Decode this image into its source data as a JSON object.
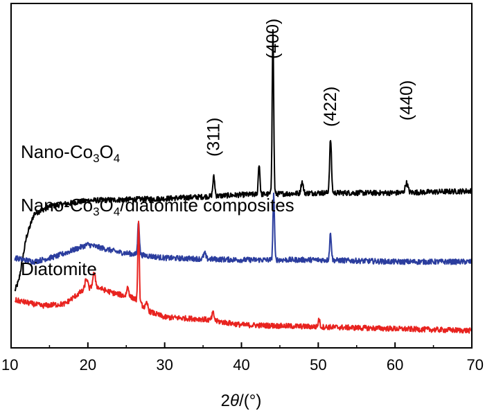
{
  "chart_data": {
    "type": "line",
    "xlabel_prefix": "2",
    "xlabel_theta": "θ",
    "xlabel_suffix": "/(°)",
    "ylabel": "",
    "xlim": [
      10,
      70
    ],
    "xticks": [
      10,
      20,
      30,
      40,
      50,
      60,
      70
    ],
    "grid": false,
    "series": [
      {
        "name": "Nano-Co3O4",
        "label_parts": [
          "Nano-Co",
          "3",
          "O",
          "4"
        ],
        "color": "#000000",
        "baseline": [
          [
            10.5,
            3
          ],
          [
            11,
            3.5
          ],
          [
            12,
            5.8
          ],
          [
            13,
            7.0
          ],
          [
            15,
            7.4
          ],
          [
            20,
            7.7
          ],
          [
            30,
            7.8
          ],
          [
            40,
            8.0
          ],
          [
            50,
            8.1
          ],
          [
            60,
            8.1
          ],
          [
            70,
            8.2
          ]
        ],
        "peaks": [
          {
            "x": 36.4,
            "h": 1.0,
            "w": 0.18
          },
          {
            "x": 42.3,
            "h": 1.6,
            "w": 0.15
          },
          {
            "x": 44.1,
            "h": 8.5,
            "w": 0.14
          },
          {
            "x": 47.9,
            "h": 0.6,
            "w": 0.2
          },
          {
            "x": 51.6,
            "h": 2.8,
            "w": 0.17
          },
          {
            "x": 61.5,
            "h": 0.5,
            "w": 0.25
          }
        ]
      },
      {
        "name": "Nano-Co3O4/diatomite composites",
        "label_parts": [
          "Nano-Co",
          "3",
          "O",
          "4",
          "/diatomite composites"
        ],
        "color": "#2b3d9e",
        "baseline": [
          [
            10.5,
            4.7
          ],
          [
            13,
            4.5
          ],
          [
            16,
            4.8
          ],
          [
            20,
            5.4
          ],
          [
            24,
            5.0
          ],
          [
            30,
            4.7
          ],
          [
            40,
            4.6
          ],
          [
            50,
            4.6
          ],
          [
            60,
            4.5
          ],
          [
            70,
            4.5
          ]
        ],
        "peaks": [
          {
            "x": 26.6,
            "h": 1.8,
            "w": 0.15
          },
          {
            "x": 35.2,
            "h": 0.3,
            "w": 0.2
          },
          {
            "x": 44.2,
            "h": 3.4,
            "w": 0.14
          },
          {
            "x": 51.6,
            "h": 1.4,
            "w": 0.16
          }
        ]
      },
      {
        "name": "Diatomite",
        "label_parts": [
          "Diatomite"
        ],
        "color": "#e8231f",
        "baseline": [
          [
            10.5,
            2.5
          ],
          [
            14,
            2.2
          ],
          [
            17,
            2.3
          ],
          [
            19,
            2.9
          ],
          [
            21,
            3.2
          ],
          [
            23,
            2.9
          ],
          [
            26,
            2.6
          ],
          [
            28,
            1.9
          ],
          [
            30,
            1.6
          ],
          [
            35,
            1.5
          ],
          [
            40,
            1.2
          ],
          [
            50,
            1.1
          ],
          [
            60,
            1.0
          ],
          [
            70,
            0.9
          ]
        ],
        "peaks": [
          {
            "x": 19.8,
            "h": 0.6,
            "w": 0.25
          },
          {
            "x": 20.8,
            "h": 0.7,
            "w": 0.25
          },
          {
            "x": 25.2,
            "h": 0.5,
            "w": 0.2
          },
          {
            "x": 26.6,
            "h": 4.3,
            "w": 0.13
          },
          {
            "x": 27.7,
            "h": 0.3,
            "w": 0.2
          },
          {
            "x": 36.3,
            "h": 0.4,
            "w": 0.2
          },
          {
            "x": 50.1,
            "h": 0.4,
            "w": 0.15
          }
        ]
      }
    ],
    "peak_labels": [
      {
        "text": "(311)",
        "x": 36.4
      },
      {
        "text": "(400)",
        "x": 44.1
      },
      {
        "text": "(422)",
        "x": 51.6
      },
      {
        "text": "(440)",
        "x": 61.5
      }
    ]
  }
}
